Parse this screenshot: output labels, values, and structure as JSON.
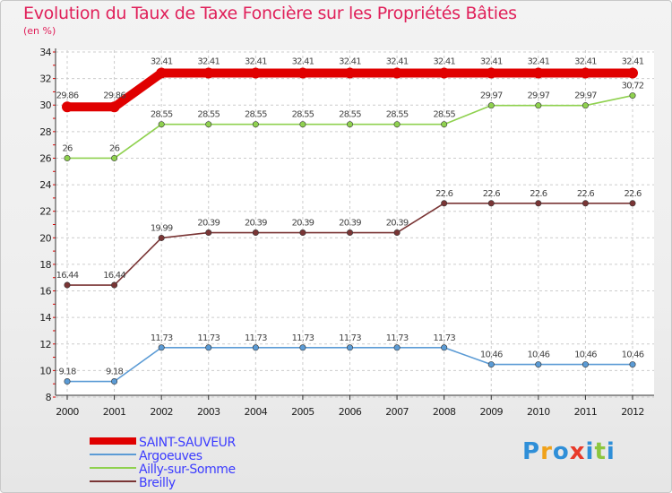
{
  "chart_data": {
    "type": "line",
    "title": "Evolution du Taux de Taxe Foncière sur les Propriétés Bâties",
    "ylabel": "(en %)",
    "xlabel": "",
    "categories": [
      "2000",
      "2001",
      "2002",
      "2003",
      "2004",
      "2005",
      "2006",
      "2007",
      "2008",
      "2009",
      "2010",
      "2011",
      "2012"
    ],
    "ylim": [
      8,
      34
    ],
    "yticks": [
      8,
      10,
      12,
      14,
      16,
      18,
      20,
      22,
      24,
      26,
      28,
      30,
      32,
      34
    ],
    "grid": true,
    "legend_position": "bottom-left",
    "series": [
      {
        "name": "SAINT-SAUVEUR",
        "color": "#e00000",
        "values": [
          29.86,
          29.86,
          32.41,
          32.41,
          32.41,
          32.41,
          32.41,
          32.41,
          32.41,
          32.41,
          32.41,
          32.41,
          32.41
        ],
        "labels": [
          "29.86",
          "29.86",
          "32.41",
          "32.41",
          "32.41",
          "32.41",
          "32.41",
          "32.41",
          "32.41",
          "32.41",
          "32.41",
          "32.41",
          "32.41"
        ]
      },
      {
        "name": "Argoeuves",
        "color": "#5b9bd5",
        "values": [
          9.18,
          9.18,
          11.73,
          11.73,
          11.73,
          11.73,
          11.73,
          11.73,
          11.73,
          10.46,
          10.46,
          10.46,
          10.46
        ],
        "labels": [
          "9.18",
          "9.18",
          "11.73",
          "11.73",
          "11.73",
          "11.73",
          "11.73",
          "11.73",
          "11.73",
          "10.46",
          "10.46",
          "10.46",
          "10.46"
        ]
      },
      {
        "name": "Ailly-sur-Somme",
        "color": "#8fd14f",
        "values": [
          26,
          26,
          28.55,
          28.55,
          28.55,
          28.55,
          28.55,
          28.55,
          28.55,
          29.97,
          29.97,
          29.97,
          30.72
        ],
        "labels": [
          "26",
          "26",
          "28.55",
          "28.55",
          "28.55",
          "28.55",
          "28.55",
          "28.55",
          "28.55",
          "29.97",
          "29.97",
          "29.97",
          "30.72"
        ]
      },
      {
        "name": "Breilly",
        "color": "#7a3535",
        "values": [
          16.44,
          16.44,
          19.99,
          20.39,
          20.39,
          20.39,
          20.39,
          20.39,
          22.6,
          22.6,
          22.6,
          22.6,
          22.6
        ],
        "labels": [
          "16.44",
          "16.44",
          "19.99",
          "20.39",
          "20.39",
          "20.39",
          "20.39",
          "20.39",
          "22.6",
          "22.6",
          "22.6",
          "22.6",
          "22.6"
        ]
      }
    ]
  },
  "logo": {
    "letters": [
      "P",
      "r",
      "o",
      "x",
      "i",
      "t",
      "i"
    ],
    "colors": [
      "#2f8fd8",
      "#f0a21a",
      "#2f8fd8",
      "#e83a2a",
      "#2f8fd8",
      "#8cc63f",
      "#2f8fd8"
    ]
  }
}
